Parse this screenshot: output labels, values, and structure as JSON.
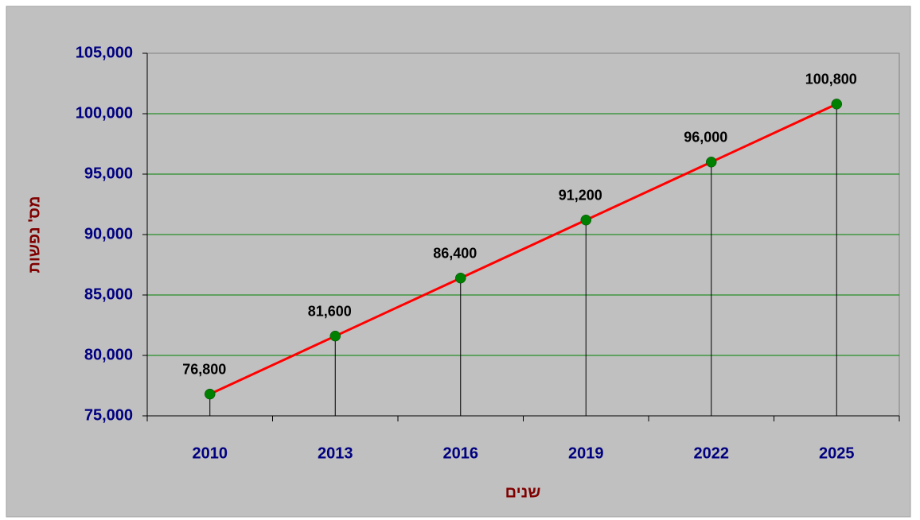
{
  "chart_data": {
    "type": "line",
    "y_label": "מס' נפשות",
    "x_label": "שנים",
    "categories": [
      "2010",
      "2013",
      "2016",
      "2019",
      "2022",
      "2025"
    ],
    "values": [
      76800,
      81600,
      86400,
      91200,
      96000,
      100800
    ],
    "value_labels": [
      "76,800",
      "81,600",
      "86,400",
      "91,200",
      "96,000",
      "100,800"
    ],
    "color": "#ff0000",
    "marker_color": "#008000",
    "drop_lines": true,
    "ylim": [
      75000,
      105000
    ],
    "yticks": [
      {
        "value": 75000,
        "label": "75,000"
      },
      {
        "value": 80000,
        "label": "80,000"
      },
      {
        "value": 85000,
        "label": "85,000"
      },
      {
        "value": 90000,
        "label": "90,000"
      },
      {
        "value": 95000,
        "label": "95,000"
      },
      {
        "value": 100000,
        "label": "100,000"
      },
      {
        "value": 105000,
        "label": "105,000"
      }
    ],
    "grid": true,
    "grid_color": "#008000"
  }
}
